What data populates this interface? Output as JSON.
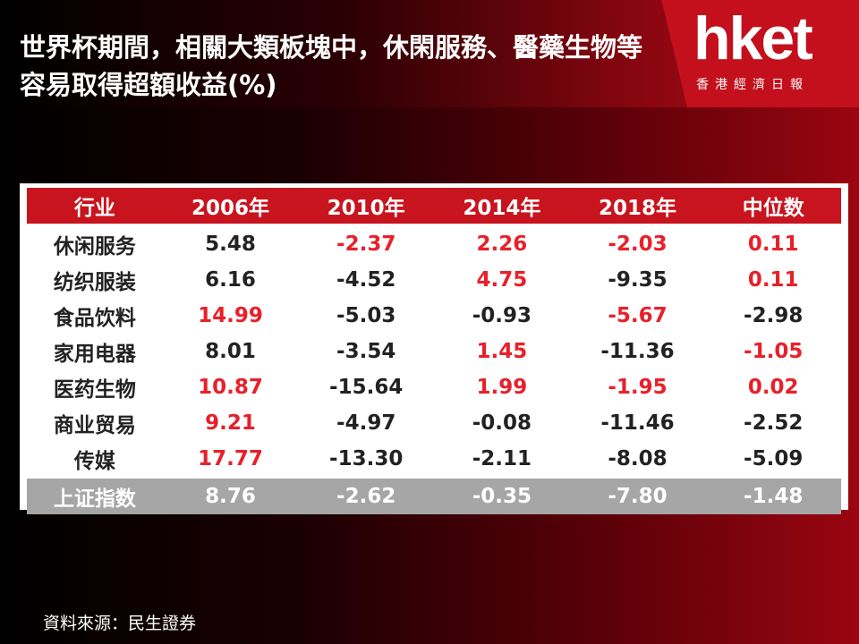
{
  "header": {
    "title": "世界杯期間，相關大類板塊中，休閑服務、醫藥生物等容易取得超額收益(%)",
    "logo": "hket",
    "logo_subtitle": "香港經濟日報"
  },
  "table": {
    "highlight_color": "#e8202a",
    "columns": [
      "行业",
      "2006年",
      "2010年",
      "2014年",
      "2018年",
      "中位数"
    ],
    "rows": [
      {
        "label": "休闲服务",
        "values": [
          "5.48",
          "-2.37",
          "2.26",
          "-2.03",
          "0.11"
        ],
        "highlight": [
          false,
          true,
          true,
          true,
          true
        ]
      },
      {
        "label": "纺织服装",
        "values": [
          "6.16",
          "-4.52",
          "4.75",
          "-9.35",
          "0.11"
        ],
        "highlight": [
          false,
          false,
          true,
          false,
          true
        ]
      },
      {
        "label": "食品饮料",
        "values": [
          "14.99",
          "-5.03",
          "-0.93",
          "-5.67",
          "-2.98"
        ],
        "highlight": [
          true,
          false,
          false,
          true,
          false
        ]
      },
      {
        "label": "家用电器",
        "values": [
          "8.01",
          "-3.54",
          "1.45",
          "-11.36",
          "-1.05"
        ],
        "highlight": [
          false,
          false,
          true,
          false,
          true
        ]
      },
      {
        "label": "医药生物",
        "values": [
          "10.87",
          "-15.64",
          "1.99",
          "-1.95",
          "0.02"
        ],
        "highlight": [
          true,
          false,
          true,
          true,
          true
        ]
      },
      {
        "label": "商业贸易",
        "values": [
          "9.21",
          "-4.97",
          "-0.08",
          "-11.46",
          "-2.52"
        ],
        "highlight": [
          true,
          false,
          false,
          false,
          false
        ]
      },
      {
        "label": "传媒",
        "values": [
          "17.77",
          "-13.30",
          "-2.11",
          "-8.08",
          "-5.09"
        ],
        "highlight": [
          true,
          false,
          false,
          false,
          false
        ]
      }
    ],
    "index_row": {
      "label": "上证指数",
      "values": [
        "8.76",
        "-2.62",
        "-0.35",
        "-7.80",
        "-1.48"
      ]
    }
  },
  "source": "資料來源：民生證券"
}
